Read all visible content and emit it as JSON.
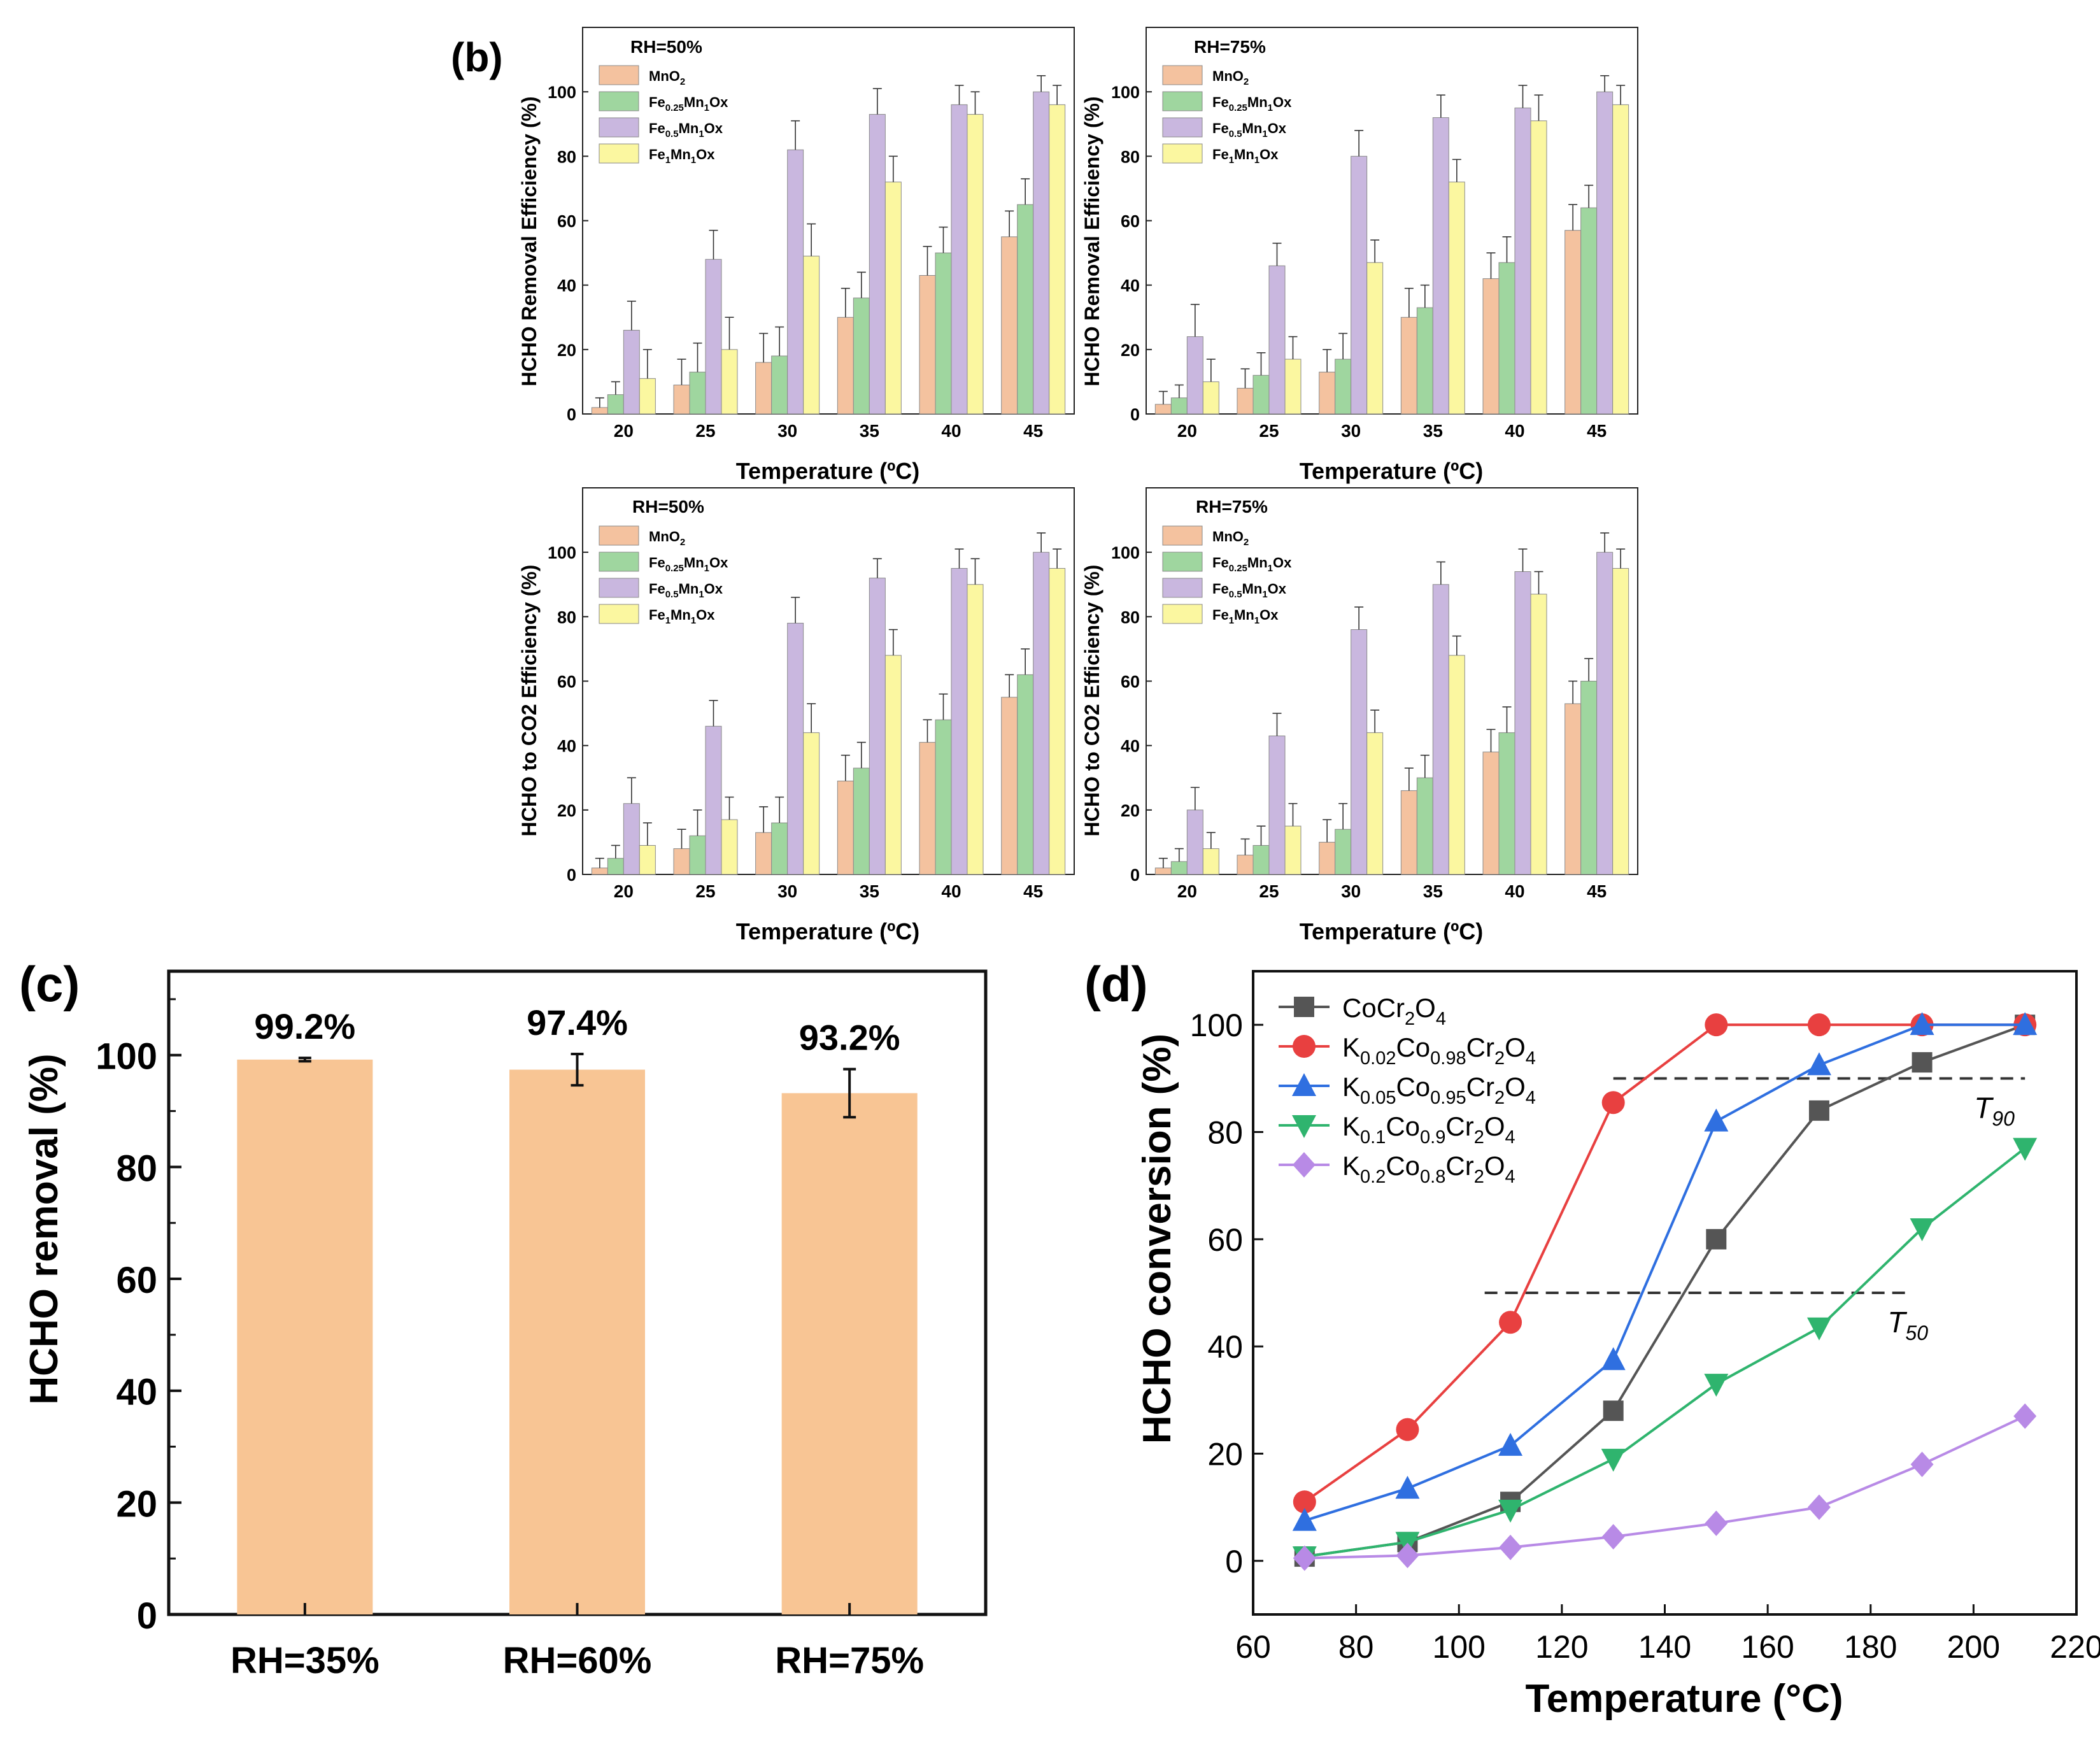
{
  "colors": {
    "mno2": "#f4c29f",
    "fe025": "#9fd69f",
    "fe05": "#c9b7df",
    "fe1": "#fbf7a0",
    "bar_c": "#f8c594",
    "cocr": "#555555",
    "k002": "#e84040",
    "k005": "#2f6fe0",
    "k01": "#2fb46e",
    "k02": "#b88ae6"
  },
  "panel_labels": {
    "b": "(b)",
    "c": "(c)",
    "d": "(d)"
  },
  "legend_b": [
    "MnO2",
    "Fe0.25Mn1Ox",
    "Fe0.5Mn1Ox",
    "Fe1Mn1Ox"
  ],
  "legend_d": [
    "CoCr2O4",
    "K0.02Co0.98Cr2O4",
    "K0.05Co0.95Cr2O4",
    "K0.1Co0.9Cr2O4",
    "K0.2Co0.8Cr2O4"
  ],
  "chart_data": [
    {
      "id": "b1",
      "type": "bar",
      "title": "RH=50%",
      "xlabel": "Temperature (ºC)",
      "ylabel": "HCHO Removal Efficiency (%)",
      "ylim": [
        0,
        120
      ],
      "yticks": [
        0,
        20,
        40,
        60,
        80,
        100
      ],
      "categories": [
        "20",
        "25",
        "30",
        "35",
        "40",
        "45"
      ],
      "series": [
        {
          "name": "MnO2",
          "values": [
            2,
            9,
            16,
            30,
            43,
            55
          ],
          "errors": [
            3,
            8,
            9,
            9,
            9,
            8
          ]
        },
        {
          "name": "Fe0.25Mn1Ox",
          "values": [
            6,
            13,
            18,
            36,
            50,
            65
          ],
          "errors": [
            4,
            9,
            9,
            8,
            8,
            8
          ]
        },
        {
          "name": "Fe0.5Mn1Ox",
          "values": [
            26,
            48,
            82,
            93,
            96,
            100
          ],
          "errors": [
            9,
            9,
            9,
            8,
            6,
            5
          ]
        },
        {
          "name": "Fe1Mn1Ox",
          "values": [
            11,
            20,
            49,
            72,
            93,
            96
          ],
          "errors": [
            9,
            10,
            10,
            8,
            7,
            6
          ]
        }
      ]
    },
    {
      "id": "b2",
      "type": "bar",
      "title": "RH=75%",
      "xlabel": "Temperature (ºC)",
      "ylabel": "HCHO Removal Efficiency (%)",
      "ylim": [
        0,
        120
      ],
      "yticks": [
        0,
        20,
        40,
        60,
        80,
        100
      ],
      "categories": [
        "20",
        "25",
        "30",
        "35",
        "40",
        "45"
      ],
      "series": [
        {
          "name": "MnO2",
          "values": [
            3,
            8,
            13,
            30,
            42,
            57
          ],
          "errors": [
            4,
            6,
            7,
            9,
            8,
            8
          ]
        },
        {
          "name": "Fe0.25Mn1Ox",
          "values": [
            5,
            12,
            17,
            33,
            47,
            64
          ],
          "errors": [
            4,
            7,
            8,
            7,
            8,
            7
          ]
        },
        {
          "name": "Fe0.5Mn1Ox",
          "values": [
            24,
            46,
            80,
            92,
            95,
            100
          ],
          "errors": [
            10,
            7,
            8,
            7,
            7,
            5
          ]
        },
        {
          "name": "Fe1Mn1Ox",
          "values": [
            10,
            17,
            47,
            72,
            91,
            96
          ],
          "errors": [
            7,
            7,
            7,
            7,
            8,
            6
          ]
        }
      ]
    },
    {
      "id": "b3",
      "type": "bar",
      "title": "RH=50%",
      "xlabel": "Temperature (ºC)",
      "ylabel": "HCHO to CO2 Efficiency (%)",
      "ylim": [
        0,
        120
      ],
      "yticks": [
        0,
        20,
        40,
        60,
        80,
        100
      ],
      "categories": [
        "20",
        "25",
        "30",
        "35",
        "40",
        "45"
      ],
      "series": [
        {
          "name": "MnO2",
          "values": [
            2,
            8,
            13,
            29,
            41,
            55
          ],
          "errors": [
            3,
            6,
            8,
            8,
            7,
            7
          ]
        },
        {
          "name": "Fe0.25Mn1Ox",
          "values": [
            5,
            12,
            16,
            33,
            48,
            62
          ],
          "errors": [
            4,
            8,
            8,
            8,
            8,
            8
          ]
        },
        {
          "name": "Fe0.5Mn1Ox",
          "values": [
            22,
            46,
            78,
            92,
            95,
            100
          ],
          "errors": [
            8,
            8,
            8,
            6,
            6,
            6
          ]
        },
        {
          "name": "Fe1Mn1Ox",
          "values": [
            9,
            17,
            44,
            68,
            90,
            95
          ],
          "errors": [
            7,
            7,
            9,
            8,
            8,
            6
          ]
        }
      ]
    },
    {
      "id": "b4",
      "type": "bar",
      "title": "RH=75%",
      "xlabel": "Temperature (ºC)",
      "ylabel": "HCHO to CO2 Efficiency (%)",
      "ylim": [
        0,
        120
      ],
      "yticks": [
        0,
        20,
        40,
        60,
        80,
        100
      ],
      "categories": [
        "20",
        "25",
        "30",
        "35",
        "40",
        "45"
      ],
      "series": [
        {
          "name": "MnO2",
          "values": [
            2,
            6,
            10,
            26,
            38,
            53
          ],
          "errors": [
            3,
            5,
            7,
            7,
            7,
            7
          ]
        },
        {
          "name": "Fe0.25Mn1Ox",
          "values": [
            4,
            9,
            14,
            30,
            44,
            60
          ],
          "errors": [
            4,
            6,
            8,
            7,
            8,
            7
          ]
        },
        {
          "name": "Fe0.5Mn1Ox",
          "values": [
            20,
            43,
            76,
            90,
            94,
            100
          ],
          "errors": [
            7,
            7,
            7,
            7,
            7,
            6
          ]
        },
        {
          "name": "Fe1Mn1Ox",
          "values": [
            8,
            15,
            44,
            68,
            87,
            95
          ],
          "errors": [
            5,
            7,
            7,
            6,
            7,
            6
          ]
        }
      ]
    },
    {
      "id": "c",
      "type": "bar",
      "xlabel": "",
      "ylabel": "HCHO removal (%)",
      "ylim": [
        0,
        115
      ],
      "yticks": [
        0,
        20,
        40,
        60,
        80,
        100
      ],
      "categories": [
        "RH=35%",
        "RH=60%",
        "RH=75%"
      ],
      "values": [
        99.2,
        97.4,
        93.2
      ],
      "errors": [
        0.3,
        2.8,
        4.3
      ],
      "data_labels": [
        "99.2%",
        "97.4%",
        "93.2%"
      ]
    },
    {
      "id": "d",
      "type": "line",
      "xlabel": "Temperature (°C)",
      "ylabel": "HCHO conversion (%)",
      "xlim": [
        60,
        220
      ],
      "ylim": [
        -10,
        110
      ],
      "xticks": [
        60,
        80,
        100,
        120,
        140,
        160,
        180,
        200,
        220
      ],
      "yticks": [
        0,
        20,
        40,
        60,
        80,
        100
      ],
      "x": [
        70,
        90,
        110,
        130,
        150,
        170,
        190,
        210
      ],
      "series": [
        {
          "name": "CoCr2O4",
          "marker": "square",
          "values": [
            0.8,
            3.5,
            11,
            28,
            60,
            84,
            93,
            100
          ]
        },
        {
          "name": "K0.02Co0.98Cr2O4",
          "marker": "circle",
          "values": [
            11,
            24.5,
            44.5,
            85.5,
            100,
            100,
            100,
            100
          ]
        },
        {
          "name": "K0.05Co0.95Cr2O4",
          "marker": "triangle-up",
          "values": [
            7.5,
            13.5,
            21.5,
            37.5,
            82,
            92.5,
            100,
            100
          ]
        },
        {
          "name": "K0.1Co0.9Cr2O4",
          "marker": "triangle-down",
          "values": [
            0.8,
            3.5,
            9.5,
            19,
            33,
            43.5,
            62,
            77
          ]
        },
        {
          "name": "K0.2Co0.8Cr2O4",
          "marker": "diamond",
          "values": [
            0.5,
            1,
            2.5,
            4.5,
            7,
            10,
            18,
            27
          ]
        }
      ],
      "reference_lines": [
        {
          "label": "T90",
          "y": 90,
          "x_range": [
            130,
            210
          ]
        },
        {
          "label": "T50",
          "y": 50,
          "x_range": [
            105,
            187
          ]
        }
      ]
    }
  ]
}
